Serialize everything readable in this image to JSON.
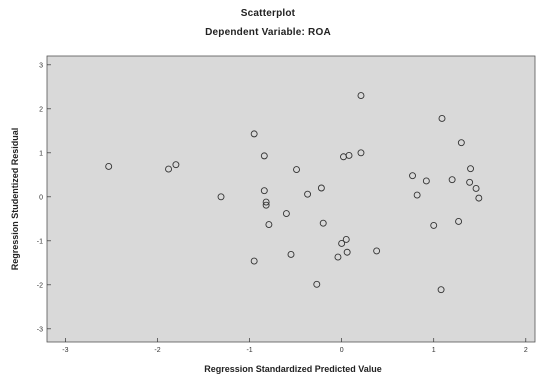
{
  "chart_data": {
    "type": "scatter",
    "title": "Scatterplot",
    "subtitle": "Dependent Variable: ROA",
    "xlabel": "Regression Standardized Predicted Value",
    "ylabel": "Regression Studentized Residual",
    "xlim": [
      -3.2,
      2.1
    ],
    "ylim": [
      -3.3,
      3.2
    ],
    "x_ticks": [
      -3,
      -2,
      -1,
      0,
      1,
      2
    ],
    "y_ticks": [
      3,
      2,
      1,
      0,
      -1,
      -2,
      -3
    ],
    "grid": false,
    "background_color": "#d9d9d9",
    "marker_color": "#333333",
    "points": [
      {
        "x": -2.53,
        "y": 0.69
      },
      {
        "x": -1.88,
        "y": 0.63
      },
      {
        "x": -1.8,
        "y": 0.73
      },
      {
        "x": -1.31,
        "y": 0.0
      },
      {
        "x": -0.95,
        "y": 1.43
      },
      {
        "x": -0.95,
        "y": -1.46
      },
      {
        "x": -0.84,
        "y": 0.93
      },
      {
        "x": -0.84,
        "y": 0.14
      },
      {
        "x": -0.82,
        "y": -0.12
      },
      {
        "x": -0.82,
        "y": -0.19
      },
      {
        "x": -0.79,
        "y": -0.63
      },
      {
        "x": -0.6,
        "y": -0.38
      },
      {
        "x": -0.55,
        "y": -1.31
      },
      {
        "x": -0.49,
        "y": 0.62
      },
      {
        "x": -0.37,
        "y": 0.06
      },
      {
        "x": -0.27,
        "y": -1.99
      },
      {
        "x": -0.22,
        "y": 0.2
      },
      {
        "x": -0.2,
        "y": -0.6
      },
      {
        "x": -0.04,
        "y": -1.37
      },
      {
        "x": 0.0,
        "y": -1.06
      },
      {
        "x": 0.02,
        "y": 0.91
      },
      {
        "x": 0.05,
        "y": -0.97
      },
      {
        "x": 0.06,
        "y": -1.26
      },
      {
        "x": 0.08,
        "y": 0.94
      },
      {
        "x": 0.21,
        "y": 2.3
      },
      {
        "x": 0.21,
        "y": 1.0
      },
      {
        "x": 0.38,
        "y": -1.23
      },
      {
        "x": 0.77,
        "y": 0.48
      },
      {
        "x": 0.82,
        "y": 0.04
      },
      {
        "x": 0.92,
        "y": 0.36
      },
      {
        "x": 1.0,
        "y": -0.65
      },
      {
        "x": 1.09,
        "y": 1.78
      },
      {
        "x": 1.08,
        "y": -2.11
      },
      {
        "x": 1.2,
        "y": 0.39
      },
      {
        "x": 1.27,
        "y": -0.56
      },
      {
        "x": 1.3,
        "y": 1.23
      },
      {
        "x": 1.39,
        "y": 0.33
      },
      {
        "x": 1.4,
        "y": 0.64
      },
      {
        "x": 1.46,
        "y": 0.19
      },
      {
        "x": 1.49,
        "y": -0.03
      }
    ]
  }
}
